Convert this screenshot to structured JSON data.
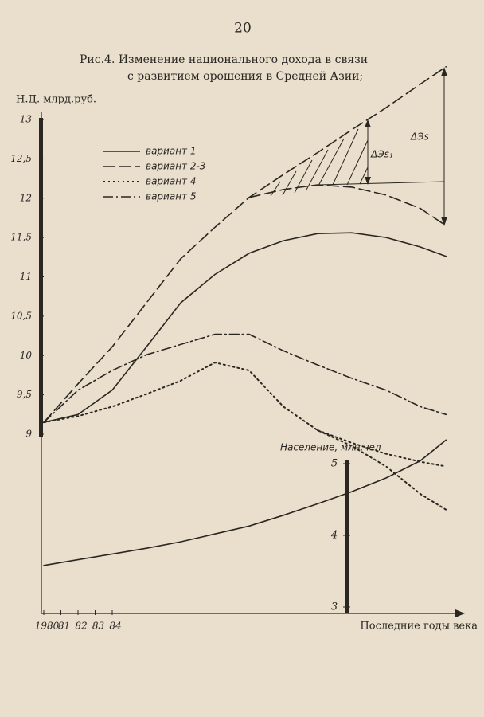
{
  "page_number": "20",
  "chart_data": {
    "type": "line",
    "title": [
      "Рис.4. Изменение национального дохода в связи",
      "с развитием орошения в Средней Азии;"
    ],
    "ylabel": "Н.Д. млрд.руб.",
    "xlabel": "Последние годы века",
    "y2label": "Население, млн.чел",
    "annotations": [
      "ΔЭs₁",
      "ΔЭs"
    ],
    "x": [
      1980,
      1982,
      1984,
      1986,
      1988,
      1990,
      1992,
      1994,
      1996,
      1998,
      2000,
      2002,
      2003.5
    ],
    "xlim": [
      1980,
      2004
    ],
    "xticks": [
      {
        "value": 1980,
        "label": "1980"
      },
      {
        "value": 1981,
        "label": "81"
      },
      {
        "value": 1982,
        "label": "82"
      },
      {
        "value": 1983,
        "label": "83"
      },
      {
        "value": 1984,
        "label": "84"
      }
    ],
    "ylim": [
      9,
      13
    ],
    "yticks": [
      9,
      {
        "value": 9.5,
        "label": "9,5"
      },
      10,
      {
        "value": 10.5,
        "label": "10,5"
      },
      11,
      {
        "value": 11.5,
        "label": "11,5"
      },
      12,
      {
        "value": 12.5,
        "label": "12,5"
      },
      13
    ],
    "y2lim": [
      3,
      5
    ],
    "y2ticks": [
      3,
      4,
      5
    ],
    "series": [
      {
        "name": "вариант 1",
        "color": "#2a2622",
        "dash": "solid",
        "values": [
          9.15,
          9.25,
          9.56,
          10.11,
          10.67,
          11.03,
          11.3,
          11.46,
          11.55,
          11.56,
          11.5,
          11.38,
          11.26
        ]
      },
      {
        "name": "вариант 2-3",
        "color": "#2a2622",
        "dash": "long",
        "values": [
          9.15,
          9.64,
          10.11,
          10.67,
          11.23,
          11.63,
          12.01,
          12.3,
          12.58,
          12.87,
          13.15,
          13.45,
          13.67
        ],
        "branch_values": [
          null,
          null,
          null,
          null,
          null,
          null,
          12.01,
          12.11,
          12.17,
          12.14,
          12.04,
          11.87,
          11.65
        ]
      },
      {
        "name": "вариант 4",
        "color": "#2a2622",
        "dash": "dotted",
        "values": [
          9.15,
          9.23,
          9.35,
          9.51,
          9.68,
          9.91,
          9.81,
          9.35,
          9.05,
          8.85,
          8.59,
          8.24,
          8.04
        ],
        "branch_values": [
          null,
          null,
          null,
          null,
          null,
          null,
          null,
          null,
          9.05,
          8.89,
          8.75,
          8.65,
          8.59
        ]
      },
      {
        "name": "вариант 5",
        "color": "#2a2622",
        "dash": "dashdot",
        "values": [
          9.15,
          9.56,
          9.81,
          10.01,
          10.14,
          10.27,
          10.27,
          10.06,
          9.88,
          9.71,
          9.56,
          9.35,
          9.25
        ]
      },
      {
        "name": "Население, млн.чел",
        "color": "#2a2622",
        "dash": "solid",
        "axis": "y2",
        "values": [
          3.58,
          3.66,
          3.74,
          3.82,
          3.91,
          4.02,
          4.13,
          4.28,
          4.44,
          4.61,
          4.8,
          5.04,
          5.33
        ]
      }
    ]
  }
}
